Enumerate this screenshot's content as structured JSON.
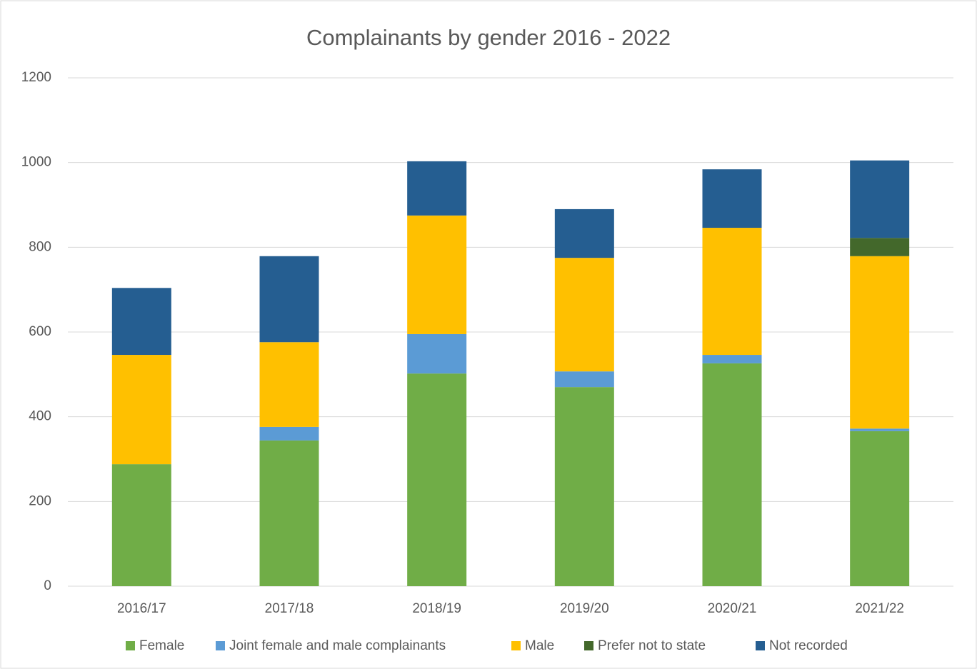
{
  "chart_data": {
    "type": "stacked_bar",
    "title": "Complainants by gender 2016 - 2022",
    "categories": [
      "2016/17",
      "2017/18",
      "2018/19",
      "2019/20",
      "2020/21",
      "2021/22"
    ],
    "series": [
      {
        "name": "Female",
        "color": "#70ad47",
        "values": [
          288,
          344,
          502,
          470,
          526,
          366
        ]
      },
      {
        "name": "Joint female and male complainants",
        "color": "#5b9bd5",
        "values": [
          0,
          32,
          93,
          37,
          20,
          6
        ]
      },
      {
        "name": "Male",
        "color": "#ffc000",
        "values": [
          258,
          200,
          280,
          268,
          300,
          407
        ]
      },
      {
        "name": "Prefer not to state",
        "color": "#43682b",
        "values": [
          0,
          0,
          0,
          0,
          0,
          43
        ]
      },
      {
        "name": "Not recorded",
        "color": "#255e91",
        "values": [
          158,
          203,
          128,
          115,
          138,
          183
        ]
      }
    ],
    "ylim": [
      0,
      1200
    ],
    "yticks": [
      0,
      200,
      400,
      600,
      800,
      1000,
      1200
    ],
    "grid": true,
    "legend": "bottom"
  }
}
